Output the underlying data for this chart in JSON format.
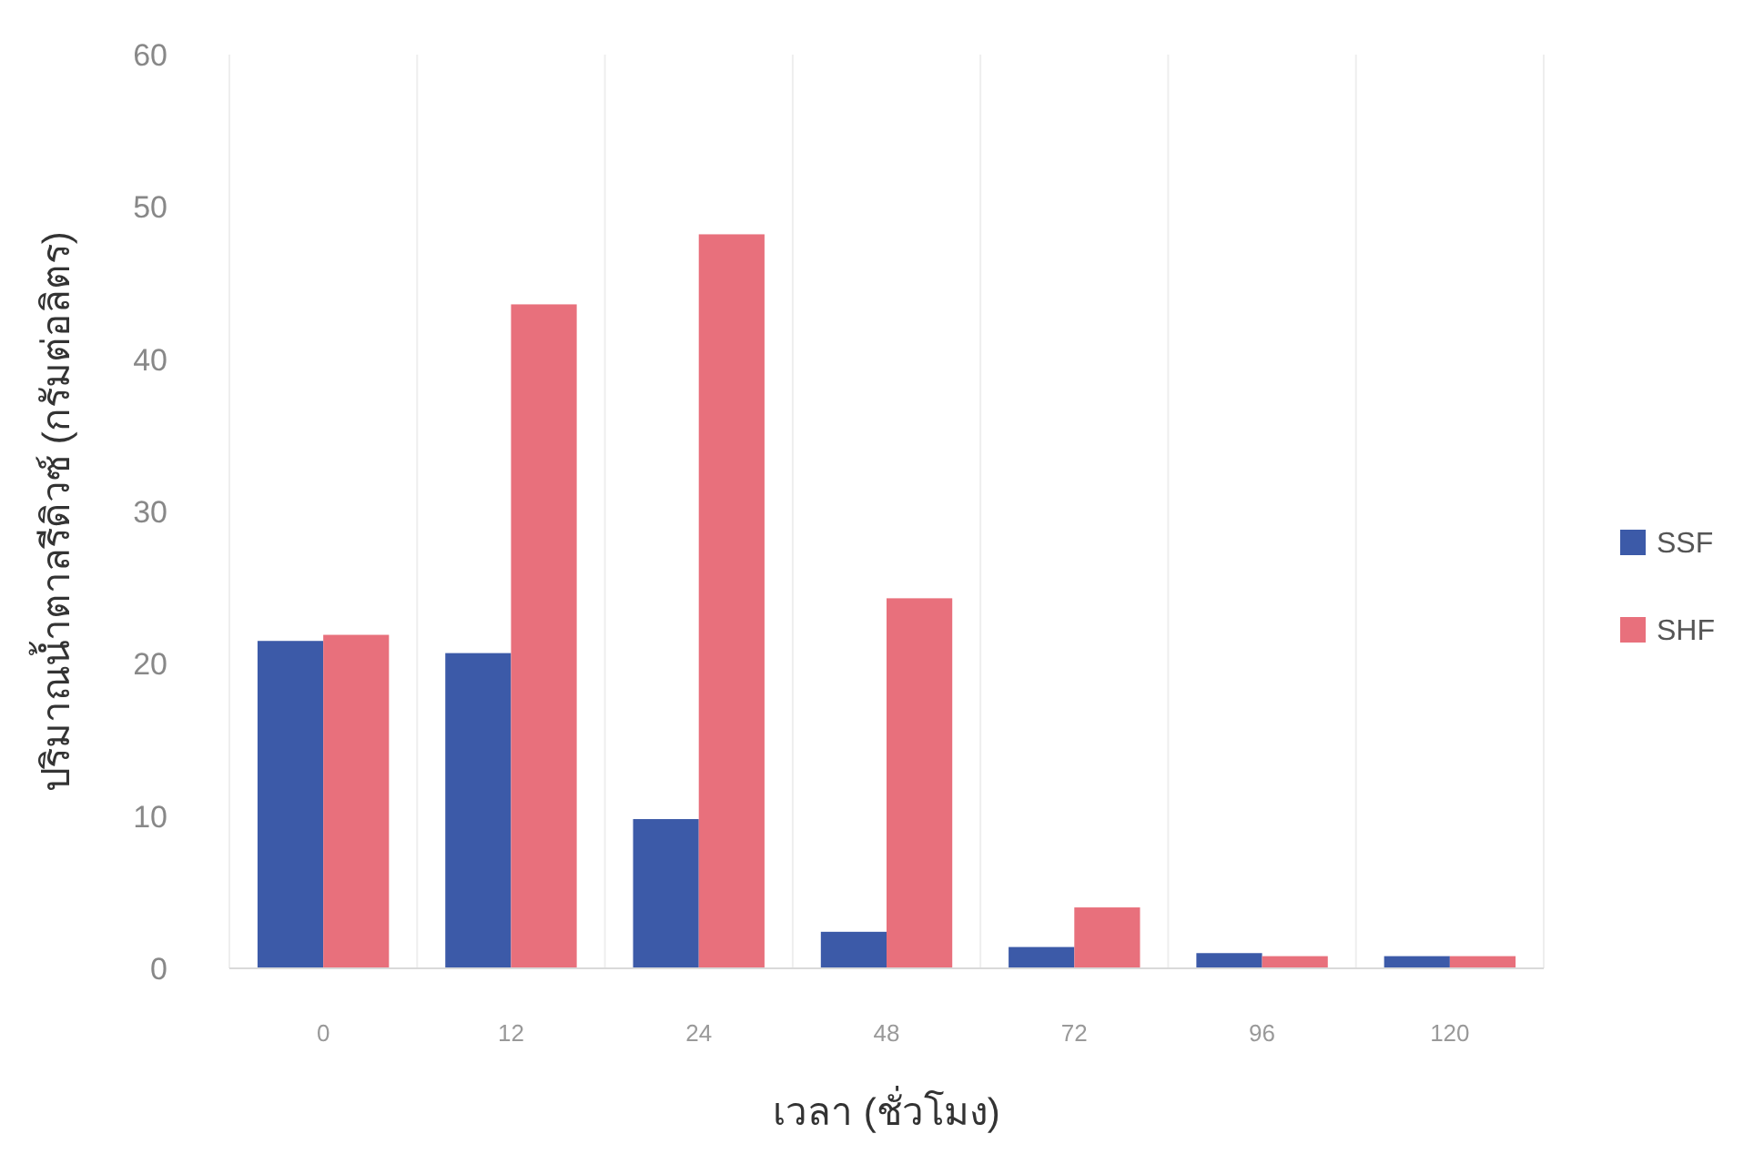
{
  "chart_data": {
    "type": "bar",
    "xlabel": "เวลา (ชั่วโมง)",
    "ylabel": "ปริมาณน้ำตาลรีดิวซ์ (กรัมต่อลิตร)",
    "categories": [
      "0",
      "12",
      "24",
      "48",
      "72",
      "96",
      "120"
    ],
    "series": [
      {
        "name": "SSF",
        "color": "#3c5aa8",
        "values": [
          21.5,
          20.7,
          9.8,
          2.4,
          1.4,
          1.0,
          0.8
        ]
      },
      {
        "name": "SHF",
        "color": "#e8707c",
        "values": [
          21.9,
          43.6,
          48.2,
          24.3,
          4.0,
          0.8,
          0.8
        ]
      }
    ],
    "ylim": [
      0,
      60
    ],
    "yticks": [
      0,
      10,
      20,
      30,
      40,
      50,
      60
    ],
    "grid": "x",
    "legend": "right"
  }
}
